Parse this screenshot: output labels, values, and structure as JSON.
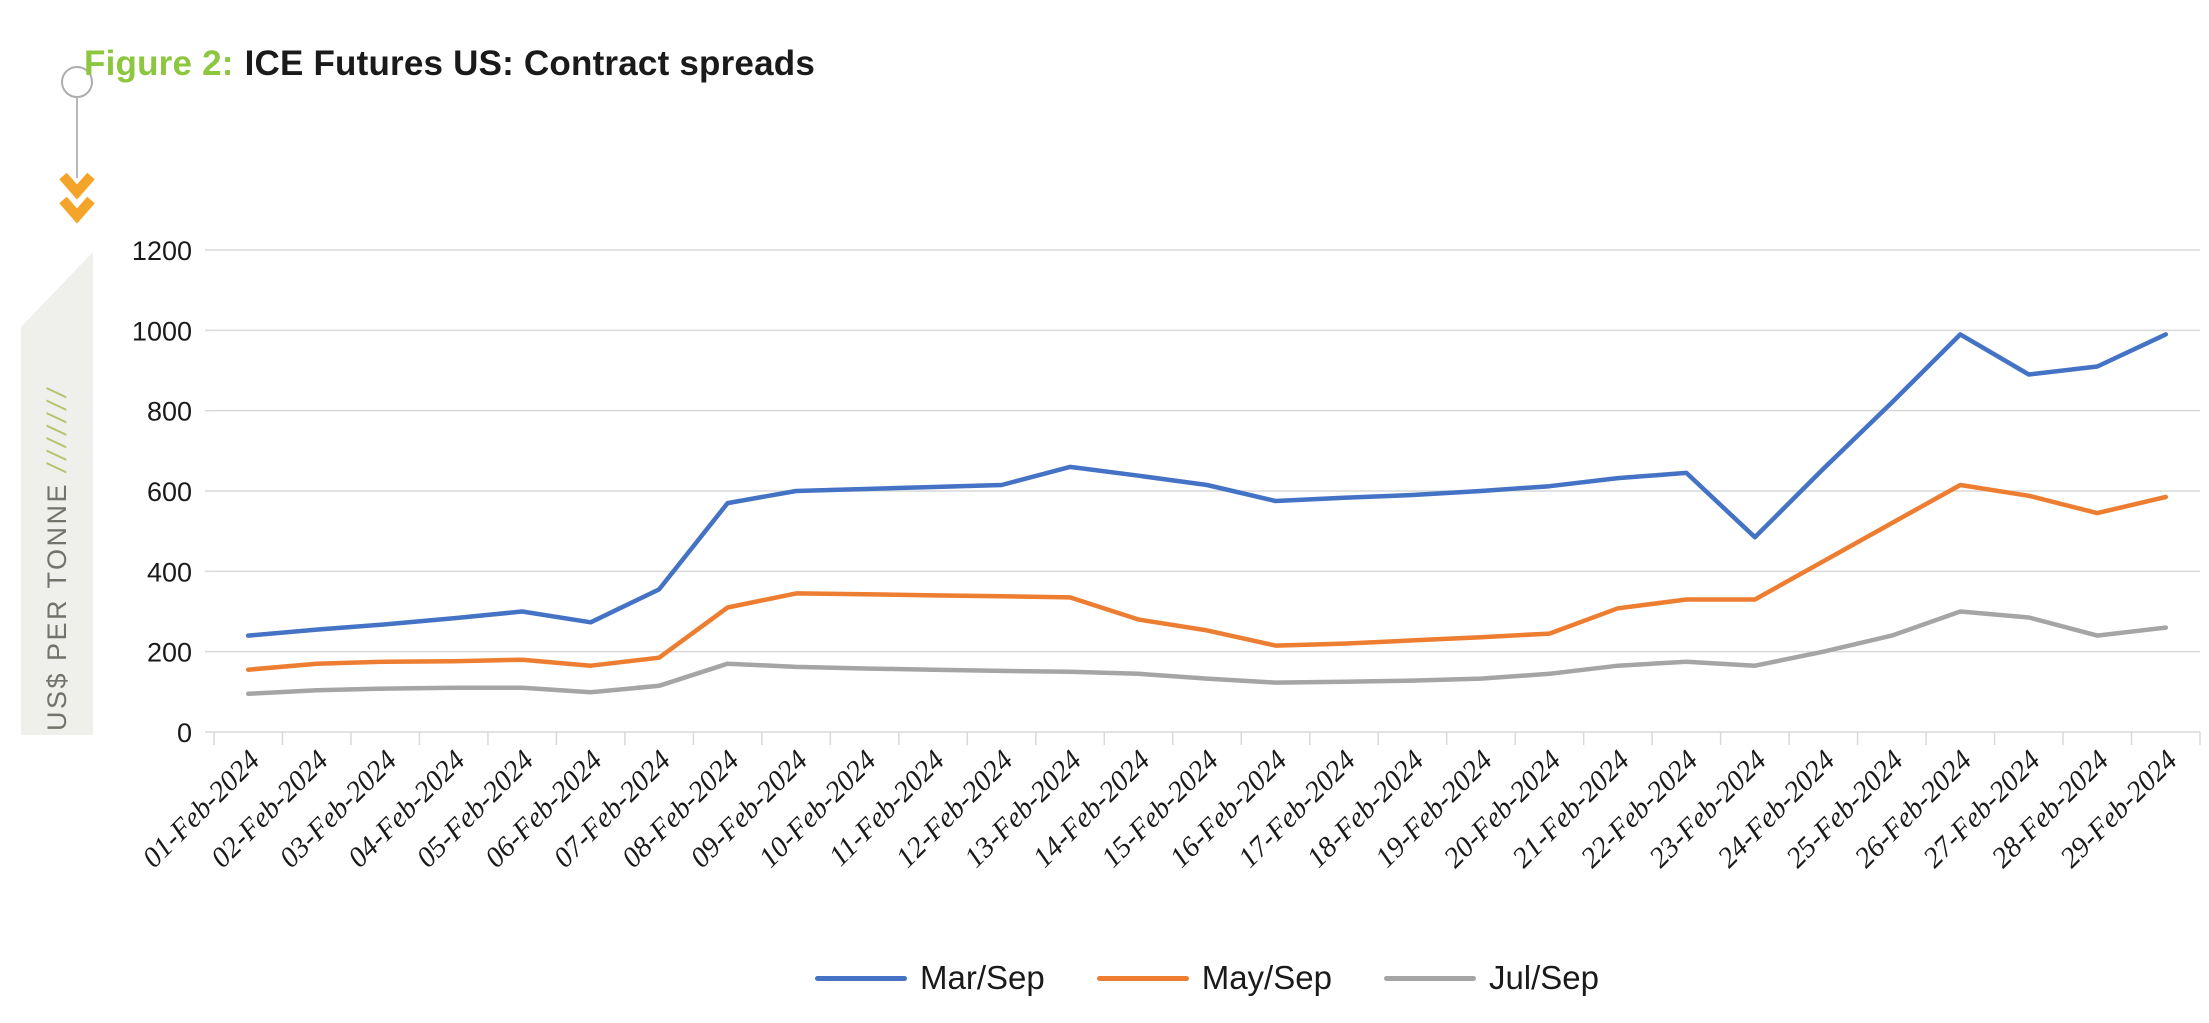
{
  "header": {
    "figure_label": "Figure 2:",
    "title": "ICE Futures US: Contract spreads"
  },
  "y_axis": {
    "label": "US$ PER TONNE",
    "slashes": "///////"
  },
  "decor": {
    "accent_green": "#8DC63F",
    "chevron_orange": "#F4A428",
    "band_fill": "#EFEFEC",
    "band_text_color": "#73736B",
    "band_slash_color": "#B5C36C",
    "circle_line_gray": "#ADADAD"
  },
  "chart_data": {
    "type": "line",
    "title": "ICE Futures US: Contract spreads",
    "ylabel": "US$ PER TONNE",
    "xlabel": "",
    "ylim": [
      0,
      1200
    ],
    "ytick_step": 200,
    "y_ticks": [
      0,
      200,
      400,
      600,
      800,
      1000,
      1200
    ],
    "grid": true,
    "grid_color": "#D9D9D9",
    "legend_position": "bottom",
    "categories": [
      "01-Feb-2024",
      "02-Feb-2024",
      "03-Feb-2024",
      "04-Feb-2024",
      "05-Feb-2024",
      "06-Feb-2024",
      "07-Feb-2024",
      "08-Feb-2024",
      "09-Feb-2024",
      "10-Feb-2024",
      "11-Feb-2024",
      "12-Feb-2024",
      "13-Feb-2024",
      "14-Feb-2024",
      "15-Feb-2024",
      "16-Feb-2024",
      "17-Feb-2024",
      "18-Feb-2024",
      "19-Feb-2024",
      "20-Feb-2024",
      "21-Feb-2024",
      "22-Feb-2024",
      "23-Feb-2024",
      "24-Feb-2024",
      "25-Feb-2024",
      "26-Feb-2024",
      "27-Feb-2024",
      "28-Feb-2024",
      "29-Feb-2024"
    ],
    "series": [
      {
        "name": "Mar/Sep",
        "color": "#4472C4",
        "values": [
          240,
          255,
          268,
          283,
          300,
          273,
          355,
          570,
          600,
          605,
          610,
          615,
          660,
          638,
          615,
          575,
          583,
          590,
          600,
          612,
          632,
          645,
          485,
          655,
          820,
          990,
          890,
          910,
          990
        ]
      },
      {
        "name": "May/Sep",
        "color": "#ED7D31",
        "values": [
          155,
          170,
          175,
          176,
          180,
          165,
          185,
          310,
          345,
          343,
          340,
          338,
          335,
          280,
          253,
          215,
          220,
          228,
          236,
          245,
          308,
          330,
          330,
          425,
          520,
          615,
          588,
          545,
          585
        ]
      },
      {
        "name": "Jul/Sep",
        "color": "#A5A5A5",
        "values": [
          95,
          104,
          108,
          110,
          110,
          99,
          115,
          170,
          162,
          158,
          155,
          152,
          150,
          145,
          133,
          123,
          125,
          128,
          133,
          145,
          165,
          175,
          165,
          200,
          240,
          300,
          285,
          240,
          260
        ]
      }
    ]
  }
}
